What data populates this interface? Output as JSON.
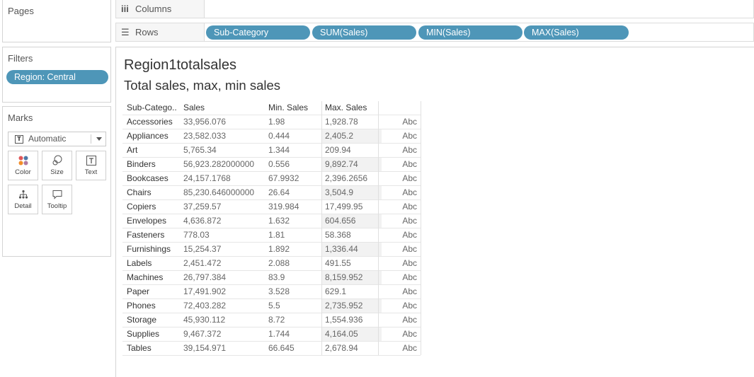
{
  "left_panel": {
    "pages_title": "Pages",
    "filters_title": "Filters",
    "filter_pill": "Region: Central",
    "marks_title": "Marks",
    "mark_type": "Automatic",
    "mark_buttons": {
      "color": "Color",
      "size": "Size",
      "text": "Text",
      "detail": "Detail",
      "tooltip": "Tooltip"
    }
  },
  "shelves": {
    "columns_label": "Columns",
    "rows_label": "Rows",
    "rows_pills": [
      "Sub-Category",
      "SUM(Sales)",
      "MIN(Sales)",
      "MAX(Sales)"
    ]
  },
  "view": {
    "title": "Region1totalsales",
    "subtitle": "Total sales, max, min sales",
    "table": {
      "headers": {
        "sub_category": "Sub-Catego..",
        "sales": "Sales",
        "min_sales": "Min. Sales",
        "max_sales": "Max. Sales"
      },
      "rows": [
        {
          "sub": "Accessories",
          "sales": "33,956.076",
          "min": "1.98",
          "max": "1,928.78",
          "abc": "Abc"
        },
        {
          "sub": "Appliances",
          "sales": "23,582.033",
          "min": "0.444",
          "max": "2,405.2",
          "abc": "Abc"
        },
        {
          "sub": "Art",
          "sales": "5,765.34",
          "min": "1.344",
          "max": "209.94",
          "abc": "Abc"
        },
        {
          "sub": "Binders",
          "sales": "56,923.282000000",
          "min": "0.556",
          "max": "9,892.74",
          "abc": "Abc"
        },
        {
          "sub": "Bookcases",
          "sales": "24,157.1768",
          "min": "67.9932",
          "max": "2,396.2656",
          "abc": "Abc"
        },
        {
          "sub": "Chairs",
          "sales": "85,230.646000000",
          "min": "26.64",
          "max": "3,504.9",
          "abc": "Abc"
        },
        {
          "sub": "Copiers",
          "sales": "37,259.57",
          "min": "319.984",
          "max": "17,499.95",
          "abc": "Abc"
        },
        {
          "sub": "Envelopes",
          "sales": "4,636.872",
          "min": "1.632",
          "max": "604.656",
          "abc": "Abc"
        },
        {
          "sub": "Fasteners",
          "sales": "778.03",
          "min": "1.81",
          "max": "58.368",
          "abc": "Abc"
        },
        {
          "sub": "Furnishings",
          "sales": "15,254.37",
          "min": "1.892",
          "max": "1,336.44",
          "abc": "Abc"
        },
        {
          "sub": "Labels",
          "sales": "2,451.472",
          "min": "2.088",
          "max": "491.55",
          "abc": "Abc"
        },
        {
          "sub": "Machines",
          "sales": "26,797.384",
          "min": "83.9",
          "max": "8,159.952",
          "abc": "Abc"
        },
        {
          "sub": "Paper",
          "sales": "17,491.902",
          "min": "3.528",
          "max": "629.1",
          "abc": "Abc"
        },
        {
          "sub": "Phones",
          "sales": "72,403.282",
          "min": "5.5",
          "max": "2,735.952",
          "abc": "Abc"
        },
        {
          "sub": "Storage",
          "sales": "45,930.112",
          "min": "8.72",
          "max": "1,554.936",
          "abc": "Abc"
        },
        {
          "sub": "Supplies",
          "sales": "9,467.372",
          "min": "1.744",
          "max": "4,164.05",
          "abc": "Abc"
        },
        {
          "sub": "Tables",
          "sales": "39,154.971",
          "min": "66.645",
          "max": "2,678.94",
          "abc": "Abc"
        }
      ]
    }
  },
  "colors": {
    "pill": "#4e96b8",
    "panel_border": "#d4d4d4",
    "shaded_cell": "#f2f2f2"
  }
}
